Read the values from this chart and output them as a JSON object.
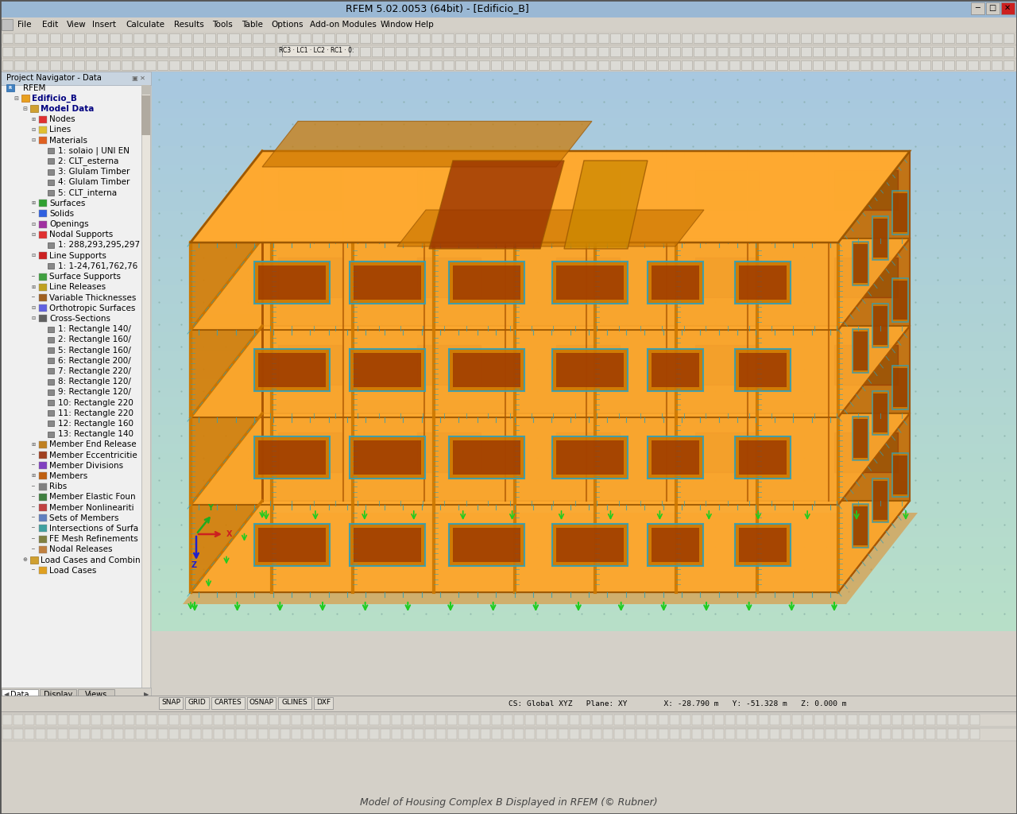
{
  "title_bar": "RFEM 5.02.0053 (64bit) - [Edificio_B]",
  "menu_items": [
    "File",
    "Edit",
    "View",
    "Insert",
    "Calculate",
    "Results",
    "Tools",
    "Table",
    "Options",
    "Add-on Modules",
    "Window",
    "Help"
  ],
  "panel_title": "Project Navigator - Data",
  "tree_data": [
    [
      0,
      "RFEM",
      false
    ],
    [
      1,
      "Edificio_B",
      true
    ],
    [
      2,
      "Model Data",
      true
    ],
    [
      3,
      "Nodes",
      false
    ],
    [
      3,
      "Lines",
      false
    ],
    [
      3,
      "Materials",
      false
    ],
    [
      4,
      "1: solaio | UNI EN",
      false
    ],
    [
      4,
      "2: CLT_esterna",
      false
    ],
    [
      4,
      "3: Glulam Timber",
      false
    ],
    [
      4,
      "4: Glulam Timber",
      false
    ],
    [
      4,
      "5: CLT_interna",
      false
    ],
    [
      3,
      "Surfaces",
      false
    ],
    [
      3,
      "Solids",
      false
    ],
    [
      3,
      "Openings",
      false
    ],
    [
      3,
      "Nodal Supports",
      false
    ],
    [
      4,
      "1: 288,293,295,297",
      false
    ],
    [
      3,
      "Line Supports",
      false
    ],
    [
      4,
      "1: 1-24,761,762,76",
      false
    ],
    [
      3,
      "Surface Supports",
      false
    ],
    [
      3,
      "Line Releases",
      false
    ],
    [
      3,
      "Variable Thicknesses",
      false
    ],
    [
      3,
      "Orthotropic Surfaces",
      false
    ],
    [
      3,
      "Cross-Sections",
      false
    ],
    [
      4,
      "1: Rectangle 140/",
      false
    ],
    [
      4,
      "2: Rectangle 160/",
      false
    ],
    [
      4,
      "5: Rectangle 160/",
      false
    ],
    [
      4,
      "6: Rectangle 200/",
      false
    ],
    [
      4,
      "7: Rectangle 220/",
      false
    ],
    [
      4,
      "8: Rectangle 120/",
      false
    ],
    [
      4,
      "9: Rectangle 120/",
      false
    ],
    [
      4,
      "10: Rectangle 220",
      false
    ],
    [
      4,
      "11: Rectangle 220",
      false
    ],
    [
      4,
      "12: Rectangle 160",
      false
    ],
    [
      4,
      "13: Rectangle 140",
      false
    ],
    [
      3,
      "Member End Release",
      false
    ],
    [
      3,
      "Member Eccentricitie",
      false
    ],
    [
      3,
      "Member Divisions",
      false
    ],
    [
      3,
      "Members",
      false
    ],
    [
      3,
      "Ribs",
      false
    ],
    [
      3,
      "Member Elastic Foun",
      false
    ],
    [
      3,
      "Member Nonlineariti",
      false
    ],
    [
      3,
      "Sets of Members",
      false
    ],
    [
      3,
      "Intersections of Surfa",
      false
    ],
    [
      3,
      "FE Mesh Refinements",
      false
    ],
    [
      3,
      "Nodal Releases",
      false
    ],
    [
      2,
      "Load Cases and Combin",
      false
    ],
    [
      3,
      "Load Cases",
      false
    ]
  ],
  "status_items": [
    "SNAP",
    "GRID",
    "CARTES",
    "OSNAP",
    "GLINES",
    "DXF"
  ],
  "coord_text": "CS: Global XYZ   Plane: XY        X: -28.790 m   Y: -51.328 m   Z: 0.000 m",
  "tab_items": [
    "Data",
    "Display",
    "Views"
  ],
  "bg_title_color": "#9ab8d4",
  "bg_menu_color": "#d4d0c8",
  "bg_panel_color": "#f0f0f0",
  "vp_top_color": "#a8c8e0",
  "vp_bot_color": "#b8e0c8",
  "orange_main": "#e88800",
  "orange_dark": "#9a5500",
  "orange_darker": "#7a3800",
  "orange_light": "#ffaa30",
  "orange_wall": "#d07800",
  "orange_trans": "#dd8800",
  "orange_roof": "#cc8800",
  "cyan_color": "#30a0b8",
  "green_support": "#20cc20",
  "axis_red": "#cc2020",
  "axis_blue": "#2020cc",
  "axis_green": "#20aa20"
}
